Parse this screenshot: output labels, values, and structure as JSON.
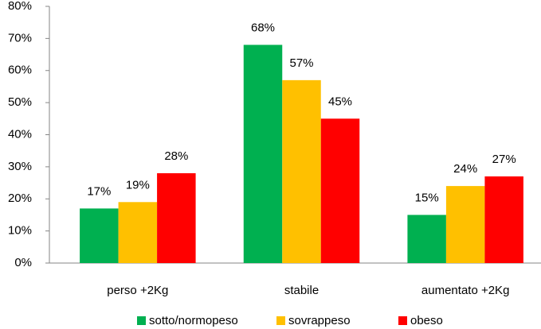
{
  "chart_data": {
    "type": "bar",
    "categories": [
      "perso +2Kg",
      "stabile",
      "aumentato +2Kg"
    ],
    "series": [
      {
        "name": "sotto/normopeso",
        "color": "#00b050",
        "values": [
          17,
          68,
          15
        ],
        "value_labels": [
          "17%",
          "68%",
          "15%"
        ]
      },
      {
        "name": "sovrappeso",
        "color": "#ffc000",
        "values": [
          19,
          57,
          24
        ],
        "value_labels": [
          "19%",
          "57%",
          "24%"
        ]
      },
      {
        "name": "obeso",
        "color": "#ff0000",
        "values": [
          28,
          45,
          27
        ],
        "value_labels": [
          "28%",
          "45%",
          "27%"
        ]
      }
    ],
    "ylim": [
      0,
      80
    ],
    "yticks": [
      {
        "value": 0,
        "label": "0%"
      },
      {
        "value": 10,
        "label": "10%"
      },
      {
        "value": 20,
        "label": "20%"
      },
      {
        "value": 30,
        "label": "30%"
      },
      {
        "value": 40,
        "label": "40%"
      },
      {
        "value": 50,
        "label": "50%"
      },
      {
        "value": 60,
        "label": "60%"
      },
      {
        "value": 70,
        "label": "70%"
      },
      {
        "value": 80,
        "label": "80%"
      }
    ],
    "grid": false,
    "legend": "bottom"
  }
}
